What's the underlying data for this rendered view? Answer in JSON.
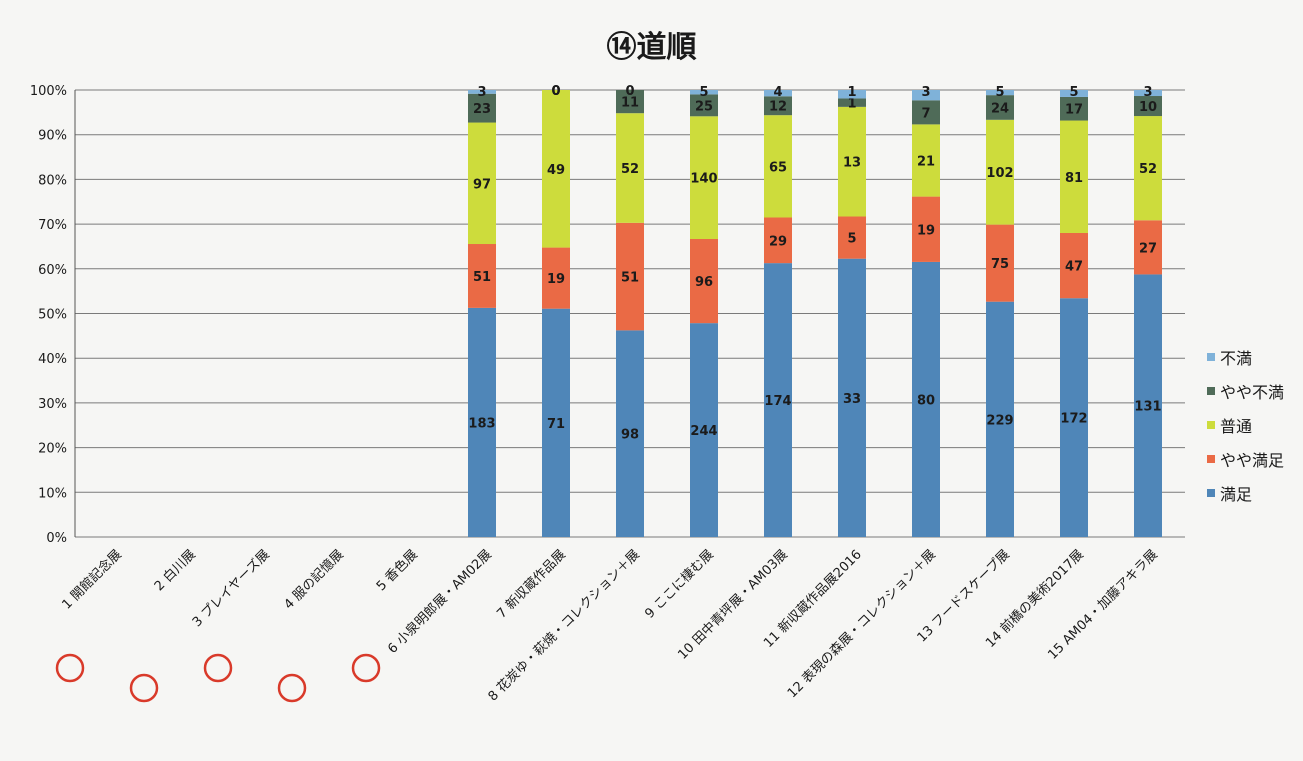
{
  "chart_data": {
    "type": "bar",
    "stacked": true,
    "normalized": true,
    "title": "⑭道順",
    "xlabel": "",
    "ylabel": "",
    "ylim": [
      0,
      100
    ],
    "y_ticks": [
      "0%",
      "10%",
      "20%",
      "30%",
      "40%",
      "50%",
      "60%",
      "70%",
      "80%",
      "90%",
      "100%"
    ],
    "grid": true,
    "legend_position": "right",
    "categories": [
      "1 開館記念展",
      "2 白川展",
      "3 プレイヤーズ展",
      "4 服の記憶展",
      "5 香色展",
      "6 小泉明郎展・AM02展",
      "7 新収蔵作品展",
      "8 花炭ゆ・萩焼・コレクション＋展",
      "9 ここに棲む展",
      "10 田中青坪展・AM03展",
      "11 新収蔵作品展2016",
      "12 表現の森展・コレクション＋展",
      "13 フードスケープ展",
      "14 前橋の美術2017展",
      "15 AM04・加藤アキラ展"
    ],
    "series": [
      {
        "name": "満足",
        "color": "#4f86b8",
        "values": [
          null,
          null,
          null,
          null,
          null,
          183,
          71,
          98,
          244,
          174,
          33,
          80,
          229,
          172,
          131
        ]
      },
      {
        "name": "やや満足",
        "color": "#ea6a45",
        "values": [
          null,
          null,
          null,
          null,
          null,
          51,
          19,
          51,
          96,
          29,
          5,
          19,
          75,
          47,
          27
        ]
      },
      {
        "name": "普通",
        "color": "#cddc3c",
        "values": [
          null,
          null,
          null,
          null,
          null,
          97,
          49,
          52,
          140,
          65,
          13,
          21,
          102,
          81,
          52
        ]
      },
      {
        "name": "やや不満",
        "color": "#4f6b58",
        "values": [
          null,
          null,
          null,
          null,
          null,
          23,
          0,
          11,
          25,
          12,
          1,
          7,
          24,
          17,
          10
        ]
      },
      {
        "name": "不満",
        "color": "#7fb2d9",
        "values": [
          null,
          null,
          null,
          null,
          null,
          3,
          0,
          0,
          5,
          4,
          1,
          3,
          5,
          5,
          3
        ]
      }
    ],
    "marked_categories": [
      0,
      1,
      2,
      3,
      4
    ]
  },
  "colors": {
    "gridline": "#7a7a7a",
    "axis": "#555555",
    "mark_circle": "#d93a2a"
  }
}
